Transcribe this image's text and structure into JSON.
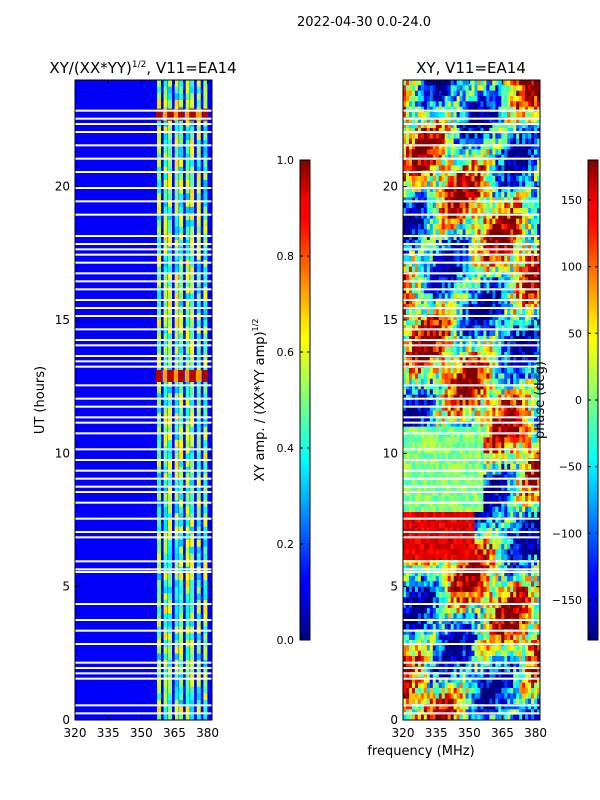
{
  "figure": {
    "suptitle": "2022-04-30 0.0-24.0",
    "shared_xlabel": "frequency (MHz)"
  },
  "chart_data": [
    {
      "type": "heatmap",
      "title_text": "XY/(XX*YY)",
      "title_exp": "1/2",
      "title_suffix": ", V11=EA14",
      "xlabel": "",
      "ylabel": "UT (hours)",
      "xlim": [
        320,
        382
      ],
      "ylim": [
        0,
        24
      ],
      "xticks": [
        "320",
        "335",
        "350",
        "365",
        "380"
      ],
      "xtick_values": [
        320,
        335,
        350,
        365,
        380
      ],
      "yticks": [
        "0",
        "5",
        "10",
        "15",
        "20"
      ],
      "ytick_values": [
        0,
        5,
        10,
        15,
        20
      ],
      "colormap": "jet",
      "colorbar": {
        "label_text": "XY amp. / (XX*YY amp)",
        "label_exp": "1/2",
        "range": [
          0.0,
          1.0
        ],
        "ticks": [
          "0.0",
          "0.2",
          "0.4",
          "0.6",
          "0.8",
          "1.0"
        ],
        "tick_values": [
          0.0,
          0.2,
          0.4,
          0.6,
          0.8,
          1.0
        ]
      },
      "description_values": {
        "background_level": 0.12,
        "band_columns_MHz": [
          358,
          361,
          363,
          366,
          368,
          371,
          373,
          376,
          379
        ],
        "band_level": 0.45,
        "hot_rows_UT": [
          22.7,
          12.9
        ]
      }
    },
    {
      "type": "heatmap",
      "title_text": "XY, V11=EA14",
      "xlabel": "",
      "ylabel": "",
      "xlim": [
        320,
        382
      ],
      "ylim": [
        0,
        24
      ],
      "xticks": [
        "320",
        "335",
        "350",
        "365",
        "380"
      ],
      "xtick_values": [
        320,
        335,
        350,
        365,
        380
      ],
      "yticks": [
        "0",
        "5",
        "10",
        "15",
        "20"
      ],
      "ytick_values": [
        0,
        5,
        10,
        15,
        20
      ],
      "colormap": "jet",
      "colorbar": {
        "label_text": "phase (deg)",
        "range": [
          -180,
          180
        ],
        "ticks": [
          "−150",
          "−100",
          "−50",
          "0",
          "50",
          "100",
          "150"
        ],
        "tick_values": [
          -150,
          -100,
          -50,
          0,
          50,
          100,
          150
        ]
      }
    }
  ],
  "gaps_UT": [
    0.25,
    0.55,
    1.55,
    1.75,
    1.95,
    2.15,
    2.85,
    3.35,
    3.75,
    4.35,
    5.55,
    5.65,
    5.95,
    6.85,
    7.05,
    7.55,
    8.15,
    8.55,
    8.75,
    9.05,
    9.35,
    9.75,
    10.15,
    10.75,
    11.15,
    11.35,
    11.75,
    12.05,
    12.55,
    13.25,
    13.45,
    13.65,
    14.05,
    14.25,
    14.65,
    15.15,
    15.45,
    15.75,
    16.15,
    16.45,
    16.75,
    17.15,
    17.45,
    17.65,
    17.85,
    18.15,
    18.95,
    19.45,
    19.95,
    20.55,
    21.05,
    21.55,
    22.05,
    22.35,
    22.55,
    22.85
  ]
}
